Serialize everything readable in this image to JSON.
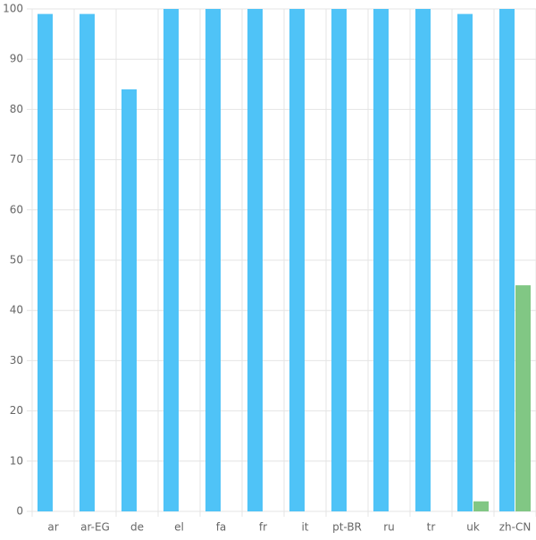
{
  "chart_data": {
    "type": "bar",
    "categories": [
      "ar",
      "ar-EG",
      "de",
      "el",
      "fa",
      "fr",
      "it",
      "pt-BR",
      "ru",
      "tr",
      "uk",
      "zh-CN"
    ],
    "series": [
      {
        "color": "#4fc3f7",
        "values": [
          99,
          99,
          84,
          100,
          100,
          100,
          100,
          100,
          100,
          100,
          99,
          100
        ]
      },
      {
        "color": "#81c784",
        "values": [
          0,
          0,
          0,
          0,
          0,
          0,
          0,
          0,
          0,
          0,
          2,
          45
        ]
      }
    ],
    "ylim": [
      0,
      100
    ],
    "yticks": [
      0,
      10,
      20,
      30,
      40,
      50,
      60,
      70,
      80,
      90,
      100
    ],
    "grid": true
  }
}
